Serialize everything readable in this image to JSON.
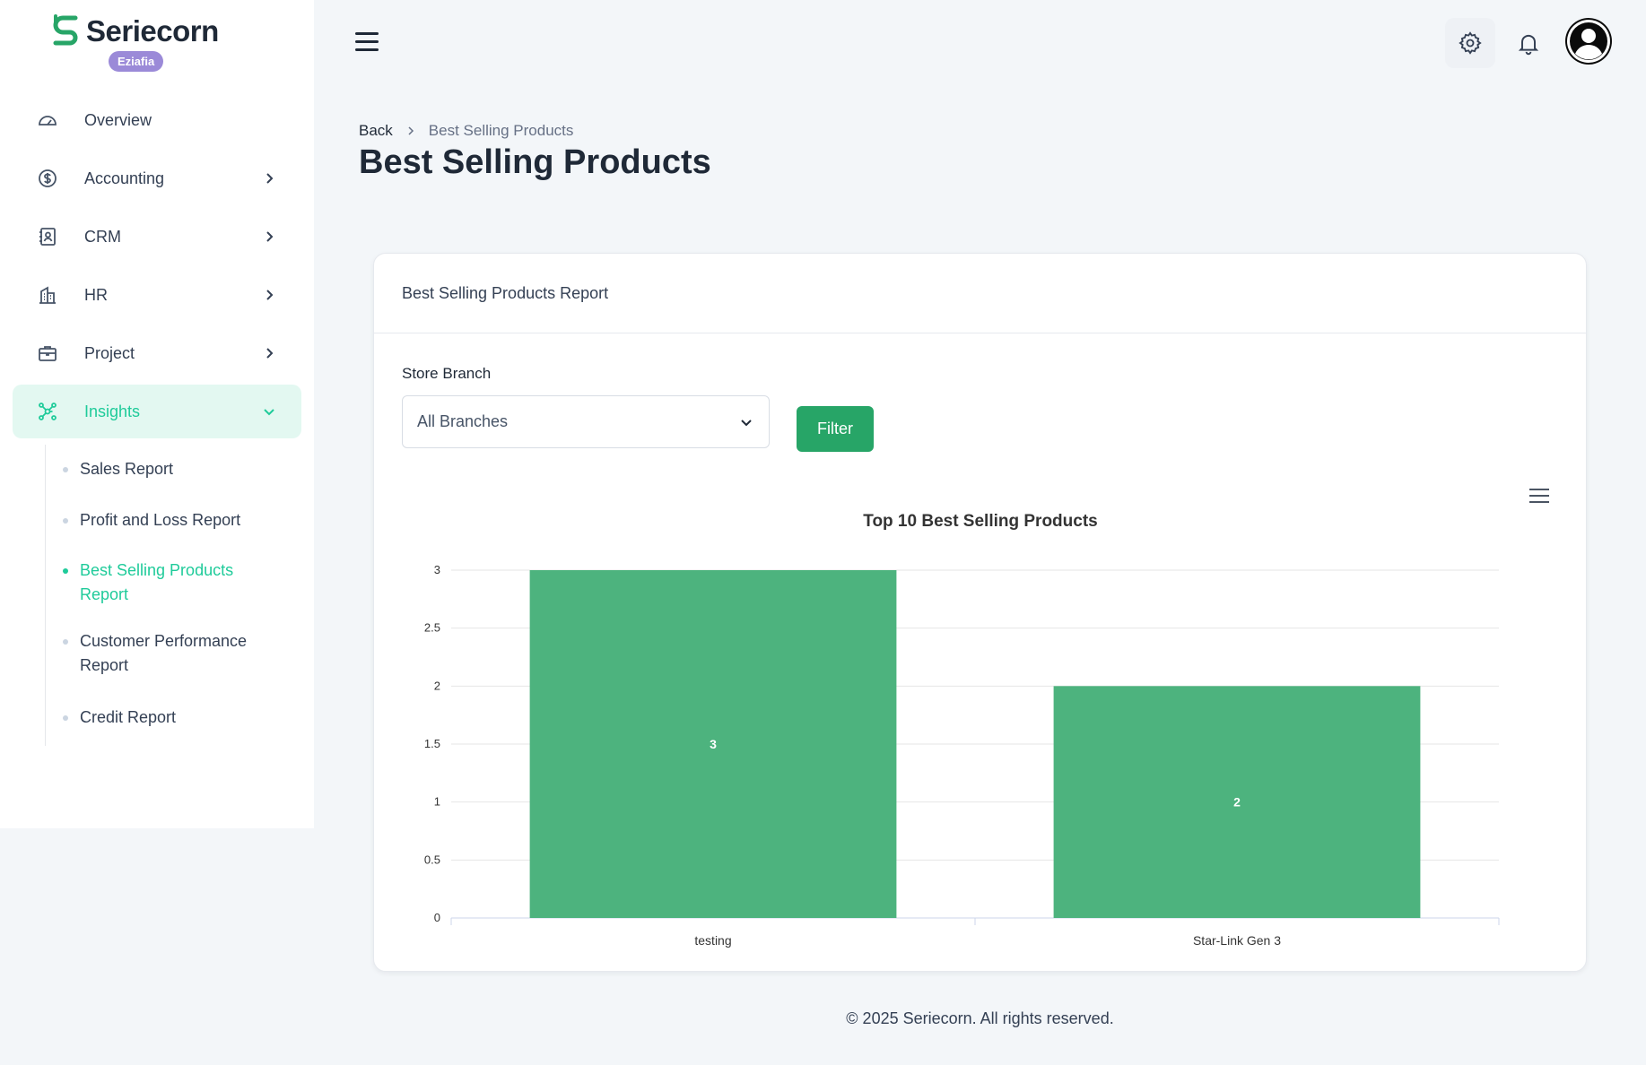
{
  "brand": {
    "name": "Seriecorn",
    "badge": "Eziafia",
    "accent": "#27a567"
  },
  "sidebar": {
    "items": [
      {
        "label": "Overview",
        "icon": "speedometer-icon",
        "has_chevron": false
      },
      {
        "label": "Accounting",
        "icon": "dollar-circle-icon",
        "has_chevron": true
      },
      {
        "label": "CRM",
        "icon": "contact-book-icon",
        "has_chevron": true
      },
      {
        "label": "HR",
        "icon": "building-icon",
        "has_chevron": true
      },
      {
        "label": "Project",
        "icon": "briefcase-icon",
        "has_chevron": true
      },
      {
        "label": "Insights",
        "icon": "network-icon",
        "has_chevron": true,
        "active": true
      }
    ],
    "subitems": [
      {
        "label": "Sales Report"
      },
      {
        "label": "Profit and Loss Report"
      },
      {
        "label": "Best Selling Products Report",
        "active": true
      },
      {
        "label": "Customer Performance Report"
      },
      {
        "label": "Credit Report"
      }
    ]
  },
  "header": {
    "menu_icon": "hamburger-icon",
    "settings_icon": "gear-icon",
    "notifications_icon": "bell-icon",
    "avatar_icon": "user-avatar-icon"
  },
  "breadcrumb": {
    "back": "Back",
    "current": "Best Selling Products"
  },
  "page": {
    "title": "Best Selling Products"
  },
  "card": {
    "title": "Best Selling Products Report",
    "filter": {
      "label": "Store Branch",
      "selected": "All Branches",
      "button": "Filter"
    }
  },
  "chart_data": {
    "type": "bar",
    "title": "Top 10 Best Selling Products",
    "categories": [
      "testing",
      "Star-Link Gen 3"
    ],
    "values": [
      3,
      2
    ],
    "data_labels": [
      "3",
      "2"
    ],
    "yticks": [
      "0",
      "0.5",
      "1",
      "1.5",
      "2",
      "2.5",
      "3"
    ],
    "ylim": [
      0,
      3
    ],
    "xlabel": "",
    "ylabel": "",
    "grid": true,
    "bar_color": "#4db37e",
    "menu_icon": "chart-menu-icon"
  },
  "footer": {
    "text": "© 2025 Seriecorn. All rights reserved."
  }
}
